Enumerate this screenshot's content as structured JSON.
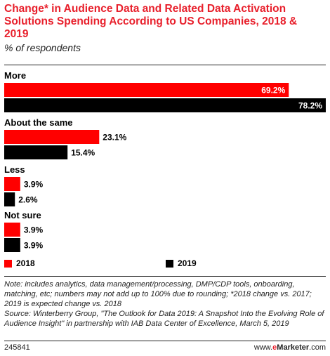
{
  "header": {
    "title": "Change* in Audience Data and Related Data Activation Solutions Spending According to US Companies, 2018 & 2019",
    "subtitle": "% of respondents"
  },
  "chart_data": {
    "type": "bar",
    "orientation": "horizontal",
    "categories": [
      "More",
      "About the same",
      "Less",
      "Not sure"
    ],
    "series": [
      {
        "name": "2018",
        "color": "#ff0000",
        "values": [
          69.2,
          23.1,
          3.9,
          3.9
        ],
        "labels": [
          "69.2%",
          "23.1%",
          "3.9%",
          "3.9%"
        ]
      },
      {
        "name": "2019",
        "color": "#000000",
        "values": [
          78.2,
          15.4,
          2.6,
          3.9
        ],
        "labels": [
          "78.2%",
          "15.4%",
          "2.6%",
          "3.9%"
        ]
      }
    ],
    "xlim": [
      0,
      78.2
    ],
    "grid": false,
    "legend_position": "bottom"
  },
  "footnote": {
    "note": "Note: includes analytics, data management/processing, DMP/CDP tools, onboarding, matching, etc; numbers may not add up to 100% due to rounding; *2018 change vs. 2017; 2019 is expected change vs. 2018",
    "source": "Source: Winterberry Group, \"The Outlook for Data 2019: A Snapshot Into the Evolving Role of Audience Insight\" in partnership with IAB Data Center of Excellence, March 5, 2019"
  },
  "footer": {
    "chart_id": "245841",
    "brand_prefix": "www.",
    "brand_name": "eMarketer",
    "brand_suffix": ".com"
  }
}
